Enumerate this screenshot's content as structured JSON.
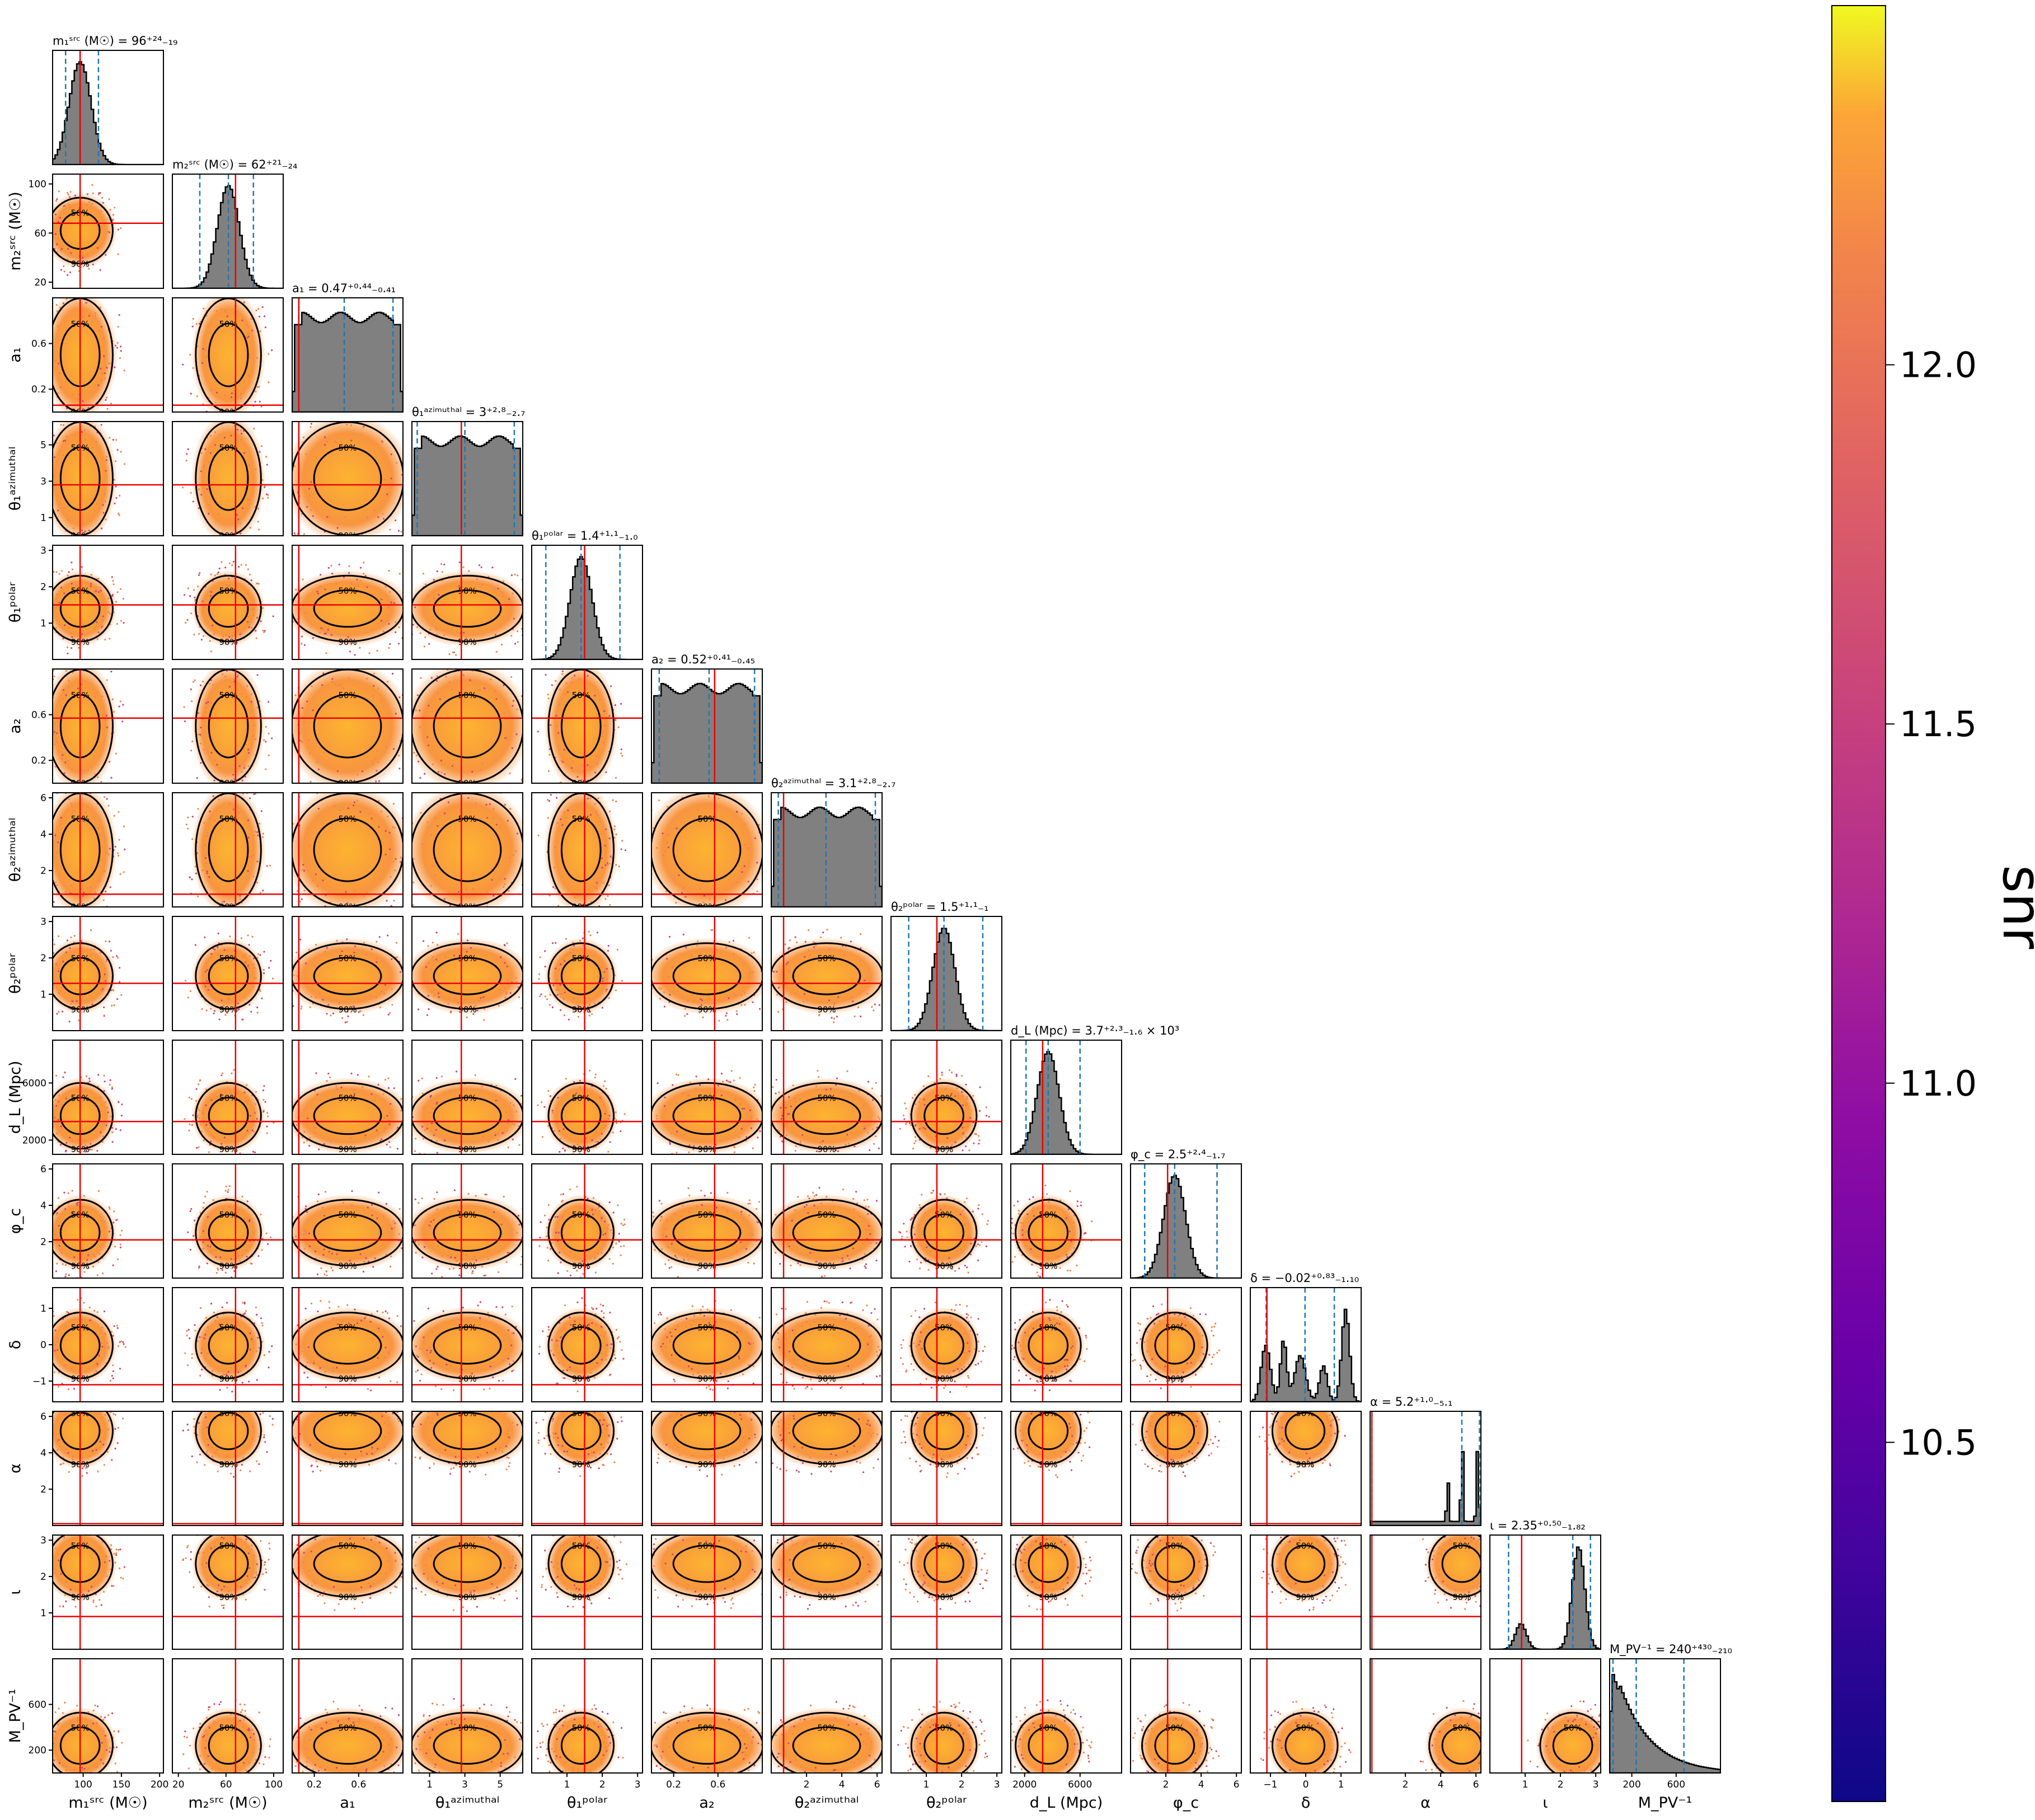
{
  "chart_data": {
    "type": "corner",
    "description": "",
    "colorbar": {
      "label": "snr",
      "min": 10.0,
      "max": 12.5,
      "ticks": [
        "10.5",
        "11.0",
        "11.5",
        "12.0"
      ],
      "tick_values": [
        10.5,
        11.0,
        11.5,
        12.0
      ],
      "colormap": "plasma"
    },
    "contour_levels": [
      "50%",
      "90%"
    ],
    "parameters": [
      {
        "key": "m1",
        "axis_label": "m₁ˢʳᶜ (M☉)",
        "title": "m₁ˢʳᶜ (M☉) = 96⁺²⁴₋₁₉",
        "median": 96,
        "lo": 77,
        "hi": 120,
        "truth": 96,
        "range": [
          60,
          205
        ],
        "ticks": [
          100,
          150,
          200
        ],
        "tick_labels": [
          "100",
          "150",
          "200"
        ],
        "shape": "peak"
      },
      {
        "key": "m2",
        "axis_label": "m₂ˢʳᶜ (M☉)",
        "title": "m₂ˢʳᶜ (M☉) = 62⁺²¹₋₂₄",
        "median": 62,
        "lo": 38,
        "hi": 83,
        "truth": 68,
        "range": [
          15,
          108
        ],
        "ticks": [
          20,
          60,
          100
        ],
        "tick_labels": [
          "20",
          "60",
          "100"
        ],
        "shape": "peak"
      },
      {
        "key": "a1",
        "axis_label": "a₁",
        "title": "a₁ = 0.47⁺⁰·⁴⁴₋₀.₄₁",
        "median": 0.47,
        "lo": 0.06,
        "hi": 0.91,
        "truth": 0.06,
        "range": [
          0,
          1
        ],
        "ticks": [
          0.2,
          0.6
        ],
        "tick_labels": [
          "0.2",
          "0.6"
        ],
        "shape": "flat"
      },
      {
        "key": "th1az",
        "axis_label": "θ₁ᵃᶻⁱᵐᵘᵗʰᵃˡ",
        "title": "θ₁ᵃᶻⁱᵐᵘᵗʰᵃˡ = 3⁺²·⁸₋₂.₇",
        "median": 3,
        "lo": 0.3,
        "hi": 5.8,
        "truth": 2.8,
        "range": [
          0,
          6.28
        ],
        "ticks": [
          1,
          3,
          5
        ],
        "tick_labels": [
          "1",
          "3",
          "5"
        ],
        "shape": "flat"
      },
      {
        "key": "th1pol",
        "axis_label": "θ₁ᵖᵒˡᵃʳ",
        "title": "θ₁ᵖᵒˡᵃʳ = 1.4⁺¹·¹₋₁.₀",
        "median": 1.4,
        "lo": 0.4,
        "hi": 2.5,
        "truth": 1.5,
        "range": [
          0,
          3.14
        ],
        "ticks": [
          1,
          2,
          3
        ],
        "tick_labels": [
          "1",
          "2",
          "3"
        ],
        "shape": "peak"
      },
      {
        "key": "a2",
        "axis_label": "a₂",
        "title": "a₂ = 0.52⁺⁰·⁴¹₋₀.₄₅",
        "median": 0.52,
        "lo": 0.07,
        "hi": 0.93,
        "truth": 0.57,
        "range": [
          0,
          1
        ],
        "ticks": [
          0.2,
          0.6
        ],
        "tick_labels": [
          "0.2",
          "0.6"
        ],
        "shape": "flat"
      },
      {
        "key": "th2az",
        "axis_label": "θ₂ᵃᶻⁱᵐᵘᵗʰᵃˡ",
        "title": "θ₂ᵃᶻⁱᵐᵘᵗʰᵃˡ = 3.1⁺²·⁸₋₂.₇",
        "median": 3.1,
        "lo": 0.4,
        "hi": 5.9,
        "truth": 0.7,
        "range": [
          0,
          6.28
        ],
        "ticks": [
          2,
          4,
          6
        ],
        "tick_labels": [
          "2",
          "4",
          "6"
        ],
        "shape": "flat"
      },
      {
        "key": "th2pol",
        "axis_label": "θ₂ᵖᵒˡᵃʳ",
        "title": "θ₂ᵖᵒˡᵃʳ = 1.5⁺¹·¹₋₁",
        "median": 1.5,
        "lo": 0.5,
        "hi": 2.6,
        "truth": 1.3,
        "range": [
          0,
          3.14
        ],
        "ticks": [
          1,
          2,
          3
        ],
        "tick_labels": [
          "1",
          "2",
          "3"
        ],
        "shape": "peak"
      },
      {
        "key": "dL",
        "axis_label": "d_L (Mpc)",
        "title": "d_L (Mpc) = 3.7⁺²·³₋₁.₆ × 10³",
        "median": 3700,
        "lo": 2100,
        "hi": 6000,
        "truth": 3300,
        "range": [
          1000,
          9000
        ],
        "ticks": [
          2000,
          6000
        ],
        "tick_labels": [
          "2000",
          "6000"
        ],
        "shape": "peak"
      },
      {
        "key": "phic",
        "axis_label": "φ_c",
        "title": "φ_c = 2.5⁺²·⁴₋₁.₇",
        "median": 2.5,
        "lo": 0.8,
        "hi": 4.9,
        "truth": 2.1,
        "range": [
          0,
          6.28
        ],
        "ticks": [
          2,
          4,
          6
        ],
        "tick_labels": [
          "2",
          "4",
          "6"
        ],
        "shape": "peak"
      },
      {
        "key": "delta",
        "axis_label": "δ",
        "title": "δ = −0.02⁺⁰·⁸³₋₁.₁₀",
        "median": -0.02,
        "lo": -1.12,
        "hi": 0.81,
        "truth": -1.1,
        "range": [
          -1.57,
          1.57
        ],
        "ticks": [
          -1,
          0,
          1
        ],
        "tick_labels": [
          "−1",
          "0",
          "1"
        ],
        "shape": "multi"
      },
      {
        "key": "alpha",
        "axis_label": "α",
        "title": "α = 5.2⁺¹·⁰₋₅.₁",
        "median": 5.2,
        "lo": 0.1,
        "hi": 6.2,
        "truth": 0.1,
        "range": [
          0,
          6.28
        ],
        "ticks": [
          2,
          4,
          6
        ],
        "tick_labels": [
          "2",
          "4",
          "6"
        ],
        "shape": "spike"
      },
      {
        "key": "iota",
        "axis_label": "ι",
        "title": "ι = 2.35⁺⁰·⁵⁰₋₁.₈₂",
        "median": 2.35,
        "lo": 0.53,
        "hi": 2.85,
        "truth": 0.9,
        "range": [
          0,
          3.14
        ],
        "ticks": [
          1,
          2,
          3
        ],
        "tick_labels": [
          "1",
          "2",
          "3"
        ],
        "shape": "bimodal"
      },
      {
        "key": "Mpv",
        "axis_label": "M_PV⁻¹",
        "title": "M_PV⁻¹ = 240⁺⁴³⁰₋₂₁₀",
        "median": 240,
        "lo": 30,
        "hi": 670,
        "truth": null,
        "range": [
          0,
          1000
        ],
        "ticks": [
          200,
          600
        ],
        "tick_labels": [
          "200",
          "600"
        ],
        "shape": "decay"
      }
    ]
  }
}
